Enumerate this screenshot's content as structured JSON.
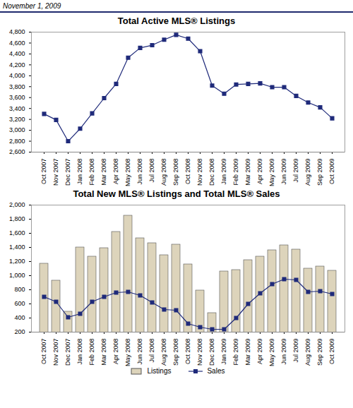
{
  "header": "November 1, 2009",
  "chart_data": [
    {
      "type": "line",
      "title": "Total Active MLS® Listings",
      "categories": [
        "Oct 2007",
        "Nov 2007",
        "Dec 2007",
        "Jan 2008",
        "Feb 2008",
        "Mar 2008",
        "Apr 2008",
        "May 2008",
        "Jun 2008",
        "Jul 2008",
        "Aug 2008",
        "Sep 2008",
        "Oct 2008",
        "Nov 2008",
        "Dec 2008",
        "Jan 2009",
        "Feb 2009",
        "Mar 2009",
        "Apr 2009",
        "May 2009",
        "Jun 2009",
        "Jul 2009",
        "Aug 2009",
        "Sep 2009",
        "Oct 2009"
      ],
      "values": [
        3300,
        3190,
        2800,
        3030,
        3310,
        3590,
        3850,
        4330,
        4510,
        4560,
        4660,
        4750,
        4680,
        4450,
        3820,
        3670,
        3840,
        3850,
        3860,
        3790,
        3790,
        3630,
        3510,
        3420,
        3220
      ],
      "color": "#1f2a7a",
      "marker": "square",
      "ylim": [
        2600,
        4800
      ],
      "yticks": [
        {
          "value": 2600,
          "label": "2,600"
        },
        {
          "value": 2800,
          "label": "2,800"
        },
        {
          "value": 3000,
          "label": "3,000"
        },
        {
          "value": 3200,
          "label": "3,200"
        },
        {
          "value": 3400,
          "label": "3,400"
        },
        {
          "value": 3600,
          "label": "3,600"
        },
        {
          "value": 3800,
          "label": "3,800"
        },
        {
          "value": 4000,
          "label": "4,000"
        },
        {
          "value": 4200,
          "label": "4,200"
        },
        {
          "value": 4400,
          "label": "4,400"
        },
        {
          "value": 4600,
          "label": "4,600"
        },
        {
          "value": 4800,
          "label": "4,800"
        }
      ],
      "grid": false
    },
    {
      "type": "bar",
      "title": "Total New MLS® Listings and Total MLS® Sales",
      "categories": [
        "Oct 2007",
        "Nov 2007",
        "Dec 2007",
        "Jan 2008",
        "Feb 2008",
        "Mar 2008",
        "Apr 2008",
        "May 2008",
        "Jun 2008",
        "Jul 2008",
        "Aug 2008",
        "Sep 2008",
        "Oct 2008",
        "Nov 2008",
        "Dec 2008",
        "Jan 2009",
        "Feb 2009",
        "Mar 2009",
        "Apr 2009",
        "May 2009",
        "Jun 2009",
        "Jul 2009",
        "Aug 2009",
        "Sep 2009",
        "Oct 2009"
      ],
      "series": [
        {
          "name": "Listings",
          "type": "bar",
          "color": "#ddd4bb",
          "values": [
            1170,
            930,
            490,
            1400,
            1270,
            1390,
            1620,
            1850,
            1530,
            1460,
            1290,
            1440,
            1160,
            790,
            470,
            1060,
            1080,
            1220,
            1270,
            1360,
            1430,
            1370,
            1100,
            1130,
            1070
          ]
        },
        {
          "name": "Sales",
          "type": "line",
          "color": "#1f2a7a",
          "marker": "square",
          "values": [
            700,
            630,
            410,
            460,
            630,
            700,
            760,
            770,
            720,
            620,
            520,
            510,
            320,
            270,
            240,
            240,
            400,
            600,
            750,
            880,
            950,
            940,
            770,
            780,
            740
          ]
        }
      ],
      "ylim": [
        200,
        2000
      ],
      "yticks": [
        200,
        400,
        600,
        800,
        {
          "value": 1000,
          "label": "1,000"
        },
        {
          "value": 1200,
          "label": "1,200"
        },
        {
          "value": 1400,
          "label": "1,400"
        },
        {
          "value": 1600,
          "label": "1,600"
        },
        {
          "value": 1800,
          "label": "1,800"
        },
        {
          "value": 2000,
          "label": "2,000"
        }
      ],
      "legend": "bottom",
      "grid": false
    }
  ]
}
